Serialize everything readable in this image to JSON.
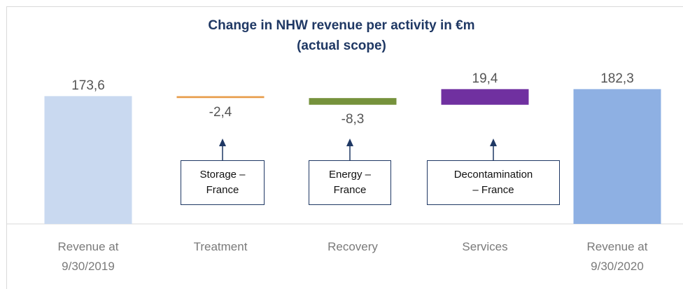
{
  "chart_data": {
    "type": "waterfall",
    "title": "Change in NHW revenue per activity in €m\n(actual scope)",
    "categories": [
      "Revenue at\n9/30/2019",
      "Treatment",
      "Recovery",
      "Services",
      "Revenue at\n9/30/2020"
    ],
    "values": [
      173.6,
      -2.4,
      -8.3,
      19.4,
      182.3
    ],
    "value_labels": [
      "173,6",
      "-2,4",
      "-8,3",
      "19,4",
      "182,3"
    ],
    "colors": [
      "#c9d9f0",
      "#e8a050",
      "#76923c",
      "#7030a0",
      "#8eb0e3"
    ],
    "annotations": [
      "Storage –\nFrance",
      "Energy –\nFrance",
      "Decontamination\n– France"
    ],
    "ylim": [
      15,
      200
    ]
  }
}
